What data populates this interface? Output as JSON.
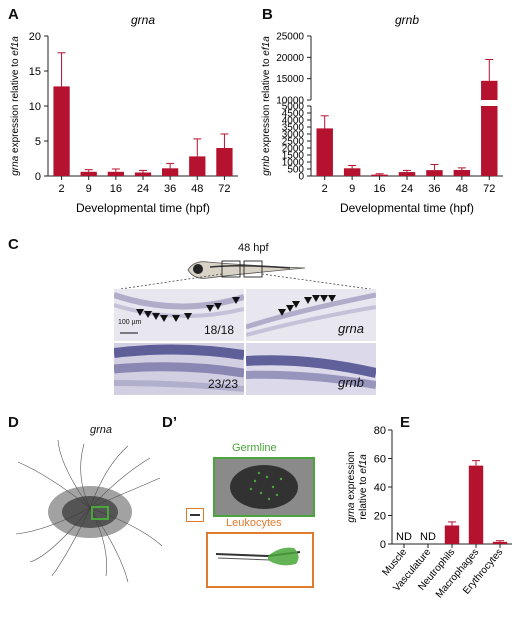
{
  "colors": {
    "bar": "#b5122f",
    "germline": "#4aa63a",
    "leukocytes": "#e07b2e",
    "stain": "#4a4a8c"
  },
  "panels": {
    "A": "A",
    "B": "B",
    "C": "C",
    "D": "D",
    "Dp": "D’",
    "E": "E"
  },
  "panelC": {
    "stage": "48 hpf",
    "scale": "100 µm",
    "grna_count": "18/18",
    "grnb_count": "23/23",
    "grna_label": "grna",
    "grnb_label": "grnb"
  },
  "panelD": {
    "title": "grna",
    "germline": "Germline",
    "leukocytes": "Leukocytes"
  },
  "chart_data": [
    {
      "type": "bar",
      "title": "grna",
      "xlabel": "Developmental time (hpf)",
      "ylabel": "grna expression relative to ef1a",
      "categories": [
        "2",
        "9",
        "16",
        "24",
        "36",
        "48",
        "72"
      ],
      "values": [
        12.8,
        0.6,
        0.6,
        0.5,
        1.1,
        2.8,
        4.0
      ],
      "errors": [
        4.8,
        0.3,
        0.4,
        0.3,
        0.7,
        2.5,
        2.0
      ],
      "ylim": [
        0,
        20
      ],
      "yticks": [
        "0",
        "5",
        "10",
        "15",
        "20"
      ]
    },
    {
      "type": "bar",
      "title": "grnb",
      "xlabel": "Developmental time (hpf)",
      "ylabel": "grnb expression relative to ef1a",
      "categories": [
        "2",
        "9",
        "16",
        "24",
        "36",
        "48",
        "72"
      ],
      "values": [
        3400,
        550,
        100,
        280,
        420,
        430,
        14500
      ],
      "errors": [
        900,
        200,
        60,
        120,
        400,
        150,
        5000
      ],
      "axis_break": [
        5000,
        10000
      ],
      "yticks": [
        "0",
        "500",
        "1000",
        "1500",
        "2000",
        "2500",
        "3000",
        "3500",
        "4000",
        "4500",
        "5000",
        "10000",
        "15000",
        "20000",
        "25000"
      ]
    },
    {
      "type": "bar",
      "ylabel": "grna expression relative to ef1a",
      "categories": [
        "Muscle",
        "Vasculature",
        "Neutrophils",
        "Macrophages",
        "Erythrocytes"
      ],
      "values": [
        0,
        0,
        13,
        55,
        1.5
      ],
      "errors": [
        0,
        0,
        2.5,
        3.5,
        0.8
      ],
      "labels": [
        "ND",
        "ND",
        "",
        "",
        ""
      ],
      "ylim": [
        0,
        80
      ],
      "yticks": [
        "0",
        "20",
        "40",
        "60",
        "80"
      ]
    }
  ]
}
